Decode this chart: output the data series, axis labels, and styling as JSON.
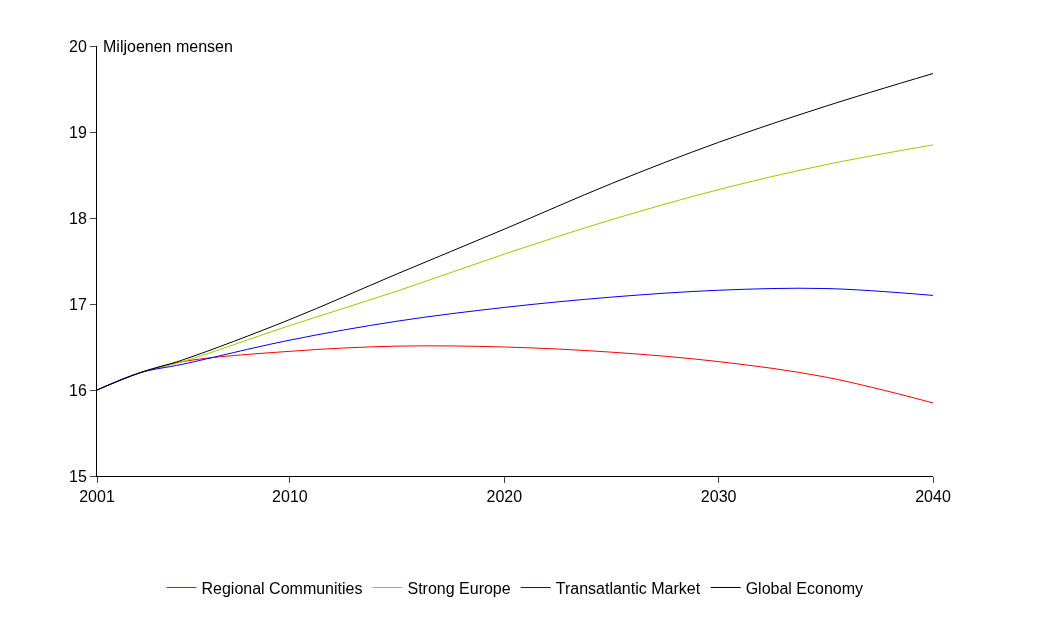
{
  "chart_data": {
    "type": "line",
    "ylabel": "Miljoenen mensen",
    "x": [
      2001,
      2003,
      2005,
      2010,
      2015,
      2020,
      2025,
      2030,
      2035,
      2040
    ],
    "series": [
      {
        "name": "Regional Communities",
        "color": "#ff0000",
        "values": [
          16.0,
          16.2,
          16.33,
          16.45,
          16.51,
          16.5,
          16.44,
          16.33,
          16.15,
          15.85
        ]
      },
      {
        "name": "Strong Europe",
        "color": "#99cc00",
        "values": [
          16.0,
          16.2,
          16.33,
          16.75,
          17.15,
          17.58,
          17.98,
          18.33,
          18.62,
          18.85
        ]
      },
      {
        "name": "Transatlantic Market",
        "color": "#0000ff",
        "values": [
          16.0,
          16.2,
          16.3,
          16.58,
          16.8,
          16.96,
          17.08,
          17.16,
          17.18,
          17.1
        ]
      },
      {
        "name": "Global Economy",
        "color": "#000000",
        "values": [
          16.0,
          16.2,
          16.35,
          16.82,
          17.35,
          17.87,
          18.4,
          18.88,
          19.3,
          19.68
        ]
      }
    ],
    "xlim": [
      2001,
      2040
    ],
    "xticks": [
      2001,
      2010,
      2020,
      2030,
      2040
    ],
    "ylim": [
      15,
      20
    ],
    "yticks": [
      15,
      16,
      17,
      18,
      19,
      20
    ],
    "legend": "bottom",
    "marker": "none",
    "line_style": "solid"
  }
}
